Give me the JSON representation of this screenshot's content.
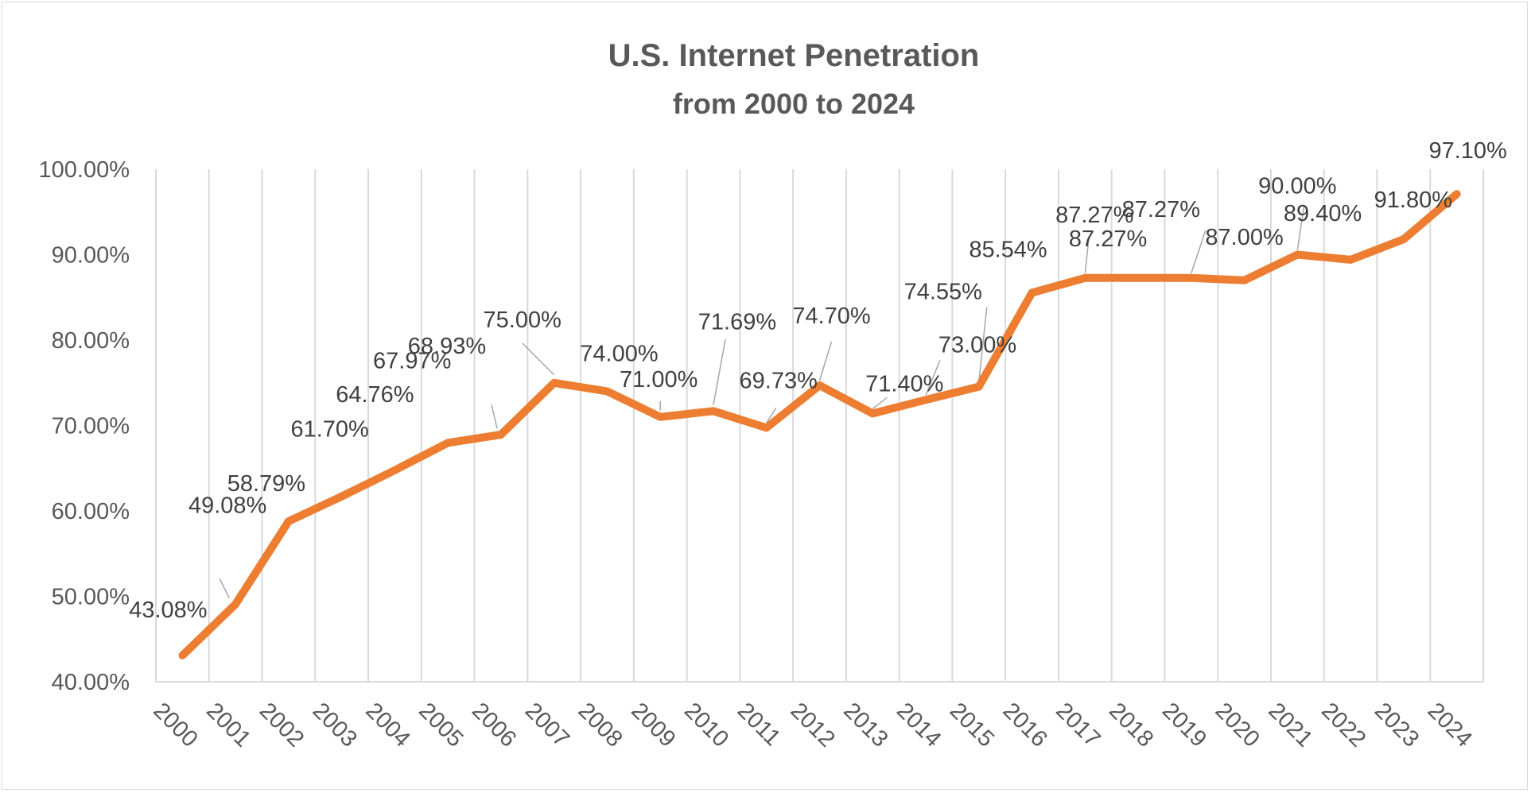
{
  "chart_data": {
    "type": "line",
    "title": "U.S. Internet Penetration",
    "subtitle": "from 2000 to 2024",
    "xlabel": "",
    "ylabel": "",
    "ylim": [
      40,
      100
    ],
    "ytick_step": 10,
    "grid": {
      "vertical": true,
      "horizontal": false
    },
    "legend": "none",
    "x": [
      "2000",
      "2001",
      "2002",
      "2003",
      "2004",
      "2005",
      "2006",
      "2007",
      "2008",
      "2009",
      "2010",
      "2011",
      "2012",
      "2013",
      "2014",
      "2015",
      "2016",
      "2017",
      "2018",
      "2019",
      "2020",
      "2021",
      "2022",
      "2023",
      "2024"
    ],
    "series": [
      {
        "color": "#ed7d31",
        "values": [
          43.08,
          49.08,
          58.79,
          61.7,
          64.76,
          67.97,
          68.93,
          75.0,
          74.0,
          71.0,
          71.69,
          69.73,
          74.7,
          71.4,
          73.0,
          74.55,
          85.54,
          87.27,
          87.27,
          87.27,
          87.0,
          90.0,
          89.4,
          91.8,
          97.1
        ],
        "data_labels": [
          "43.08%",
          "49.08%",
          "58.79%",
          "61.70%",
          "64.76%",
          "67.97%",
          "68.93%",
          "75.00%",
          "74.00%",
          "71.00%",
          "71.69%",
          "69.73%",
          "74.70%",
          "71.40%",
          "73.00%",
          "74.55%",
          "85.54%",
          "87.27%",
          "87.27%",
          "87.27%",
          "87.00%",
          "90.00%",
          "89.40%",
          "91.80%",
          "97.10%"
        ]
      }
    ],
    "yticks": [
      "40.00%",
      "50.00%",
      "60.00%",
      "70.00%",
      "80.00%",
      "90.00%",
      "100.00%"
    ]
  }
}
